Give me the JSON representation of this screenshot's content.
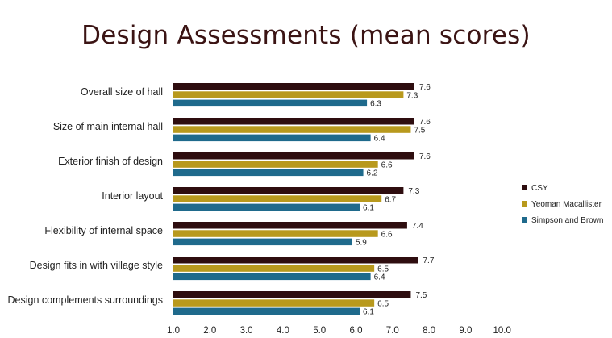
{
  "chart_data": {
    "type": "bar",
    "orientation": "horizontal",
    "title": "Design Assessments (mean scores)",
    "categories": [
      "Overall size of hall",
      "Size of main internal hall",
      "Exterior finish of design",
      "Interior layout",
      "Flexibility of internal space",
      "Design fits in with village style",
      "Design complements surroundings"
    ],
    "series": [
      {
        "name": "CSY",
        "color": "#2e0d0f",
        "values": [
          7.6,
          7.6,
          7.6,
          7.3,
          7.4,
          7.7,
          7.5
        ]
      },
      {
        "name": "Yeoman Macallister",
        "color": "#b8991d",
        "values": [
          7.3,
          7.5,
          6.6,
          6.7,
          6.6,
          6.5,
          6.5
        ]
      },
      {
        "name": "Simpson and Brown",
        "color": "#1f6a8c",
        "values": [
          6.3,
          6.4,
          6.2,
          6.1,
          5.9,
          6.4,
          6.1
        ]
      }
    ],
    "value_labels": [
      [
        "7.6",
        "7.6",
        "7.6",
        "7.3",
        "7.4",
        "7.7",
        "7.5"
      ],
      [
        "7.3",
        "7.5",
        "6.6",
        "6.7",
        "6.6",
        "6.5",
        "6.5"
      ],
      [
        "6.3",
        "6.4",
        "6.2",
        "6.1",
        "5.9",
        "6.4",
        "6.1"
      ]
    ],
    "xlim": [
      1.0,
      10.0
    ],
    "xticks": [
      1.0,
      2.0,
      3.0,
      4.0,
      5.0,
      6.0,
      7.0,
      8.0,
      9.0,
      10.0
    ],
    "xtick_labels": [
      "1.0",
      "2.0",
      "3.0",
      "4.0",
      "5.0",
      "6.0",
      "7.0",
      "8.0",
      "9.0",
      "10.0"
    ],
    "grid": false,
    "legend": "right"
  }
}
